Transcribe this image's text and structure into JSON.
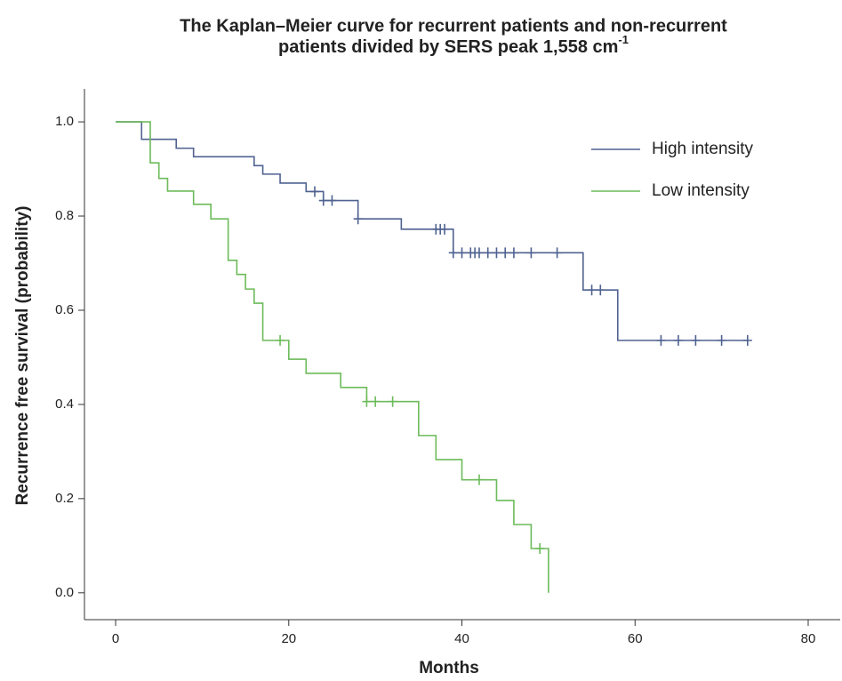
{
  "chart_data": {
    "type": "kaplan-meier",
    "title": [
      "The Kaplan–Meier curve for recurrent patients and non-recurrent",
      "patients divided by SERS peak 1,558 cm"
    ],
    "title_superscript": "-1",
    "x_label": "Months",
    "y_label": "Recurrence free survival (probability)",
    "xlim": [
      -3.6,
      83.7
    ],
    "ylim": [
      -0.057,
      1.07
    ],
    "xticks": [
      0,
      20,
      40,
      60,
      80
    ],
    "yticks": [
      {
        "value": 0,
        "label": "0.0"
      },
      0.2,
      0.4,
      0.6,
      0.8,
      {
        "value": 1,
        "label": "1.0"
      }
    ],
    "legend": "upper right",
    "series": [
      {
        "name": "High intensity",
        "color": "#4f6290",
        "x": [
          0,
          3,
          7,
          9,
          16,
          17,
          19,
          22,
          24,
          28,
          33,
          39,
          54,
          58
        ],
        "values": [
          1,
          0.963,
          0.944,
          0.926,
          0.907,
          0.889,
          0.87,
          0.852,
          0.833,
          0.794,
          0.772,
          0.722,
          0.643,
          0.536
        ],
        "censored": [
          23,
          24,
          25,
          28,
          37,
          37.5,
          38,
          39,
          40,
          41,
          41.5,
          42,
          43,
          44,
          45,
          46,
          48,
          51,
          55,
          56,
          63,
          65,
          67,
          70,
          73
        ]
      },
      {
        "name": "Low intensity",
        "color": "#6cbb5a",
        "x": [
          0,
          4,
          5,
          6,
          9,
          11,
          13,
          14,
          15,
          16,
          17,
          20,
          22,
          26,
          29,
          35,
          37,
          40,
          44,
          46,
          48,
          50
        ],
        "values": [
          1,
          0.913,
          0.88,
          0.853,
          0.825,
          0.794,
          0.706,
          0.676,
          0.645,
          0.615,
          0.536,
          0.496,
          0.466,
          0.436,
          0.406,
          0.334,
          0.283,
          0.24,
          0.196,
          0.145,
          0.094,
          0
        ],
        "censored": [
          19,
          29,
          30,
          32,
          42,
          49
        ]
      }
    ]
  }
}
